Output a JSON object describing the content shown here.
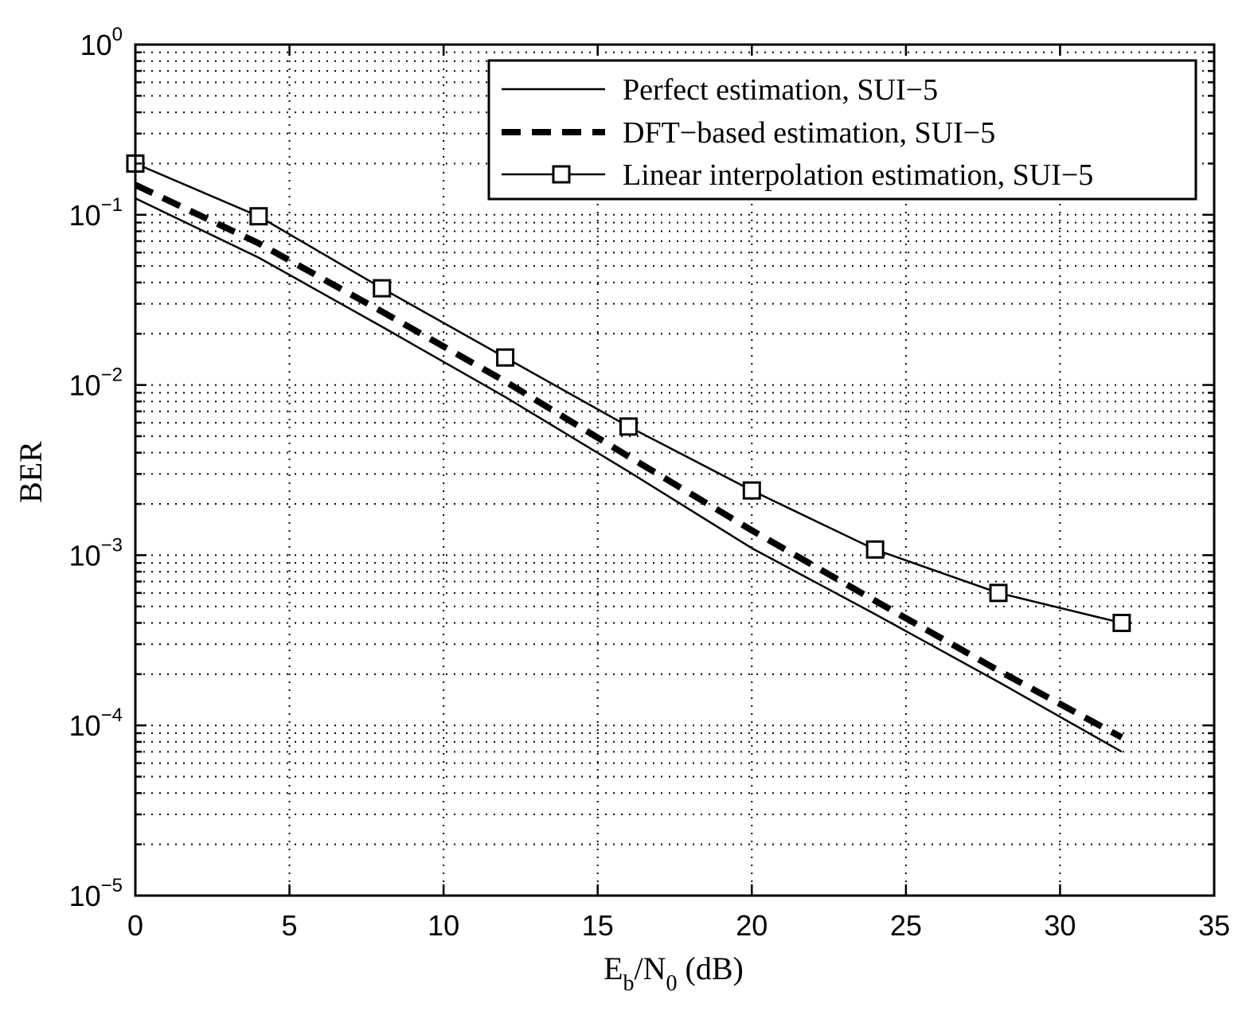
{
  "chart_data": {
    "type": "line",
    "xlabel": {
      "main": "E",
      "sub1": "b",
      "mid": "/N",
      "sub2": "0",
      "unit": " (dB)"
    },
    "ylabel": "BER",
    "x_scale": "linear",
    "y_scale": "log",
    "xlim": [
      0,
      35
    ],
    "ylim": [
      1e-05,
      1
    ],
    "x_ticks": [
      "0",
      "5",
      "10",
      "15",
      "20",
      "25",
      "30",
      "35"
    ],
    "y_ticks": [
      {
        "base": "10",
        "exp": "0",
        "value": 1
      },
      {
        "base": "10",
        "exp": "−1",
        "value": 0.1
      },
      {
        "base": "10",
        "exp": "−2",
        "value": 0.01
      },
      {
        "base": "10",
        "exp": "−3",
        "value": 0.001
      },
      {
        "base": "10",
        "exp": "−4",
        "value": 0.0001
      },
      {
        "base": "10",
        "exp": "−5",
        "value": 1e-05
      }
    ],
    "grid": true,
    "legend_position": "top-right",
    "series": [
      {
        "name": "Perfect estimation, SUI−5",
        "style": "solid",
        "marker": "none",
        "color": "#000000",
        "x": [
          0,
          4,
          8,
          12,
          16,
          20,
          24,
          28,
          32
        ],
        "y": [
          0.125,
          0.056,
          0.022,
          0.0085,
          0.0031,
          0.0011,
          0.00045,
          0.00018,
          7e-05
        ]
      },
      {
        "name": "DFT−based estimation, SUI−5",
        "style": "dashed",
        "marker": "none",
        "color": "#000000",
        "x": [
          0,
          4,
          8,
          12,
          16,
          20,
          24,
          28,
          32
        ],
        "y": [
          0.15,
          0.068,
          0.027,
          0.0105,
          0.0038,
          0.0014,
          0.00054,
          0.00021,
          8.5e-05
        ]
      },
      {
        "name": "Linear interpolation estimation, SUI−5",
        "style": "solid",
        "marker": "square",
        "color": "#000000",
        "x": [
          0,
          4,
          8,
          12,
          16,
          20,
          24,
          28,
          32
        ],
        "y": [
          0.2,
          0.098,
          0.037,
          0.0145,
          0.0057,
          0.0024,
          0.00108,
          0.0006,
          0.0004
        ]
      }
    ]
  }
}
